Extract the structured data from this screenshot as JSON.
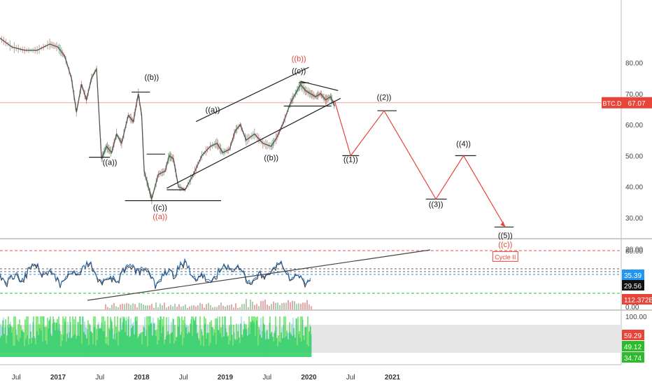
{
  "colors": {
    "price": "#555555",
    "wave": "#222222",
    "projection": "#e8443a",
    "current_line": "#f2a0a0",
    "price_badge": "#e8443a",
    "rsi": "#2f6fb5",
    "mid_blue": "#2196f3",
    "green_dash": "#22cc22",
    "osc_green": "#22dd22",
    "osc_cyan": "#2bb3c9",
    "band": "#e6e6e6",
    "axis_text": "#444444"
  },
  "chart_data": {
    "type": "line",
    "symbol": "BTC.D",
    "price_badge": "67.07",
    "current_value": 67.07,
    "x_ticks": [
      "Jul",
      "2017",
      "Jul",
      "2018",
      "Jul",
      "2019",
      "Jul",
      "2020",
      "Jul",
      "2021"
    ],
    "x_bold_ticks": [
      "2017",
      "2018",
      "2019",
      "2020",
      "2021"
    ],
    "y_ticks": [
      "80.00",
      "70.00",
      "60.00",
      "50.00",
      "40.00",
      "30.00",
      "20.00"
    ],
    "ylim": [
      12,
      88
    ],
    "price_series": [
      {
        "t": 2016.15,
        "v": 84
      },
      {
        "t": 2016.3,
        "v": 88
      },
      {
        "t": 2016.45,
        "v": 85
      },
      {
        "t": 2016.6,
        "v": 84
      },
      {
        "t": 2016.75,
        "v": 84
      },
      {
        "t": 2016.9,
        "v": 86
      },
      {
        "t": 2017.0,
        "v": 85
      },
      {
        "t": 2017.08,
        "v": 82
      },
      {
        "t": 2017.16,
        "v": 75
      },
      {
        "t": 2017.22,
        "v": 64
      },
      {
        "t": 2017.28,
        "v": 73
      },
      {
        "t": 2017.34,
        "v": 68
      },
      {
        "t": 2017.4,
        "v": 75
      },
      {
        "t": 2017.46,
        "v": 78
      },
      {
        "t": 2017.52,
        "v": 49
      },
      {
        "t": 2017.58,
        "v": 53
      },
      {
        "t": 2017.64,
        "v": 51
      },
      {
        "t": 2017.7,
        "v": 57
      },
      {
        "t": 2017.76,
        "v": 54
      },
      {
        "t": 2017.84,
        "v": 63
      },
      {
        "t": 2017.9,
        "v": 61
      },
      {
        "t": 2017.96,
        "v": 70
      },
      {
        "t": 2018.0,
        "v": 63
      },
      {
        "t": 2018.03,
        "v": 45
      },
      {
        "t": 2018.08,
        "v": 40
      },
      {
        "t": 2018.12,
        "v": 36
      },
      {
        "t": 2018.2,
        "v": 44
      },
      {
        "t": 2018.28,
        "v": 45
      },
      {
        "t": 2018.33,
        "v": 50
      },
      {
        "t": 2018.38,
        "v": 49
      },
      {
        "t": 2018.44,
        "v": 40
      },
      {
        "t": 2018.52,
        "v": 39
      },
      {
        "t": 2018.62,
        "v": 44
      },
      {
        "t": 2018.72,
        "v": 50
      },
      {
        "t": 2018.82,
        "v": 53
      },
      {
        "t": 2018.9,
        "v": 54
      },
      {
        "t": 2018.97,
        "v": 51
      },
      {
        "t": 2019.05,
        "v": 52
      },
      {
        "t": 2019.12,
        "v": 58
      },
      {
        "t": 2019.18,
        "v": 60
      },
      {
        "t": 2019.25,
        "v": 55
      },
      {
        "t": 2019.35,
        "v": 57
      },
      {
        "t": 2019.45,
        "v": 54
      },
      {
        "t": 2019.55,
        "v": 53
      },
      {
        "t": 2019.62,
        "v": 56
      },
      {
        "t": 2019.7,
        "v": 61
      },
      {
        "t": 2019.78,
        "v": 67
      },
      {
        "t": 2019.84,
        "v": 70
      },
      {
        "t": 2019.9,
        "v": 73
      },
      {
        "t": 2019.96,
        "v": 71
      },
      {
        "t": 2020.02,
        "v": 70
      },
      {
        "t": 2020.08,
        "v": 69
      },
      {
        "t": 2020.14,
        "v": 70
      },
      {
        "t": 2020.2,
        "v": 68
      },
      {
        "t": 2020.26,
        "v": 69
      },
      {
        "t": 2020.31,
        "v": 66
      }
    ],
    "projection_path": [
      {
        "t": 2020.31,
        "v": 67.5
      },
      {
        "t": 2020.5,
        "v": 50
      },
      {
        "t": 2020.9,
        "v": 64.5
      },
      {
        "t": 2021.52,
        "v": 36
      },
      {
        "t": 2021.85,
        "v": 50
      },
      {
        "t": 2022.35,
        "v": 27
      }
    ],
    "wave_labels": [
      {
        "text": "((b))",
        "t": 2018.12,
        "v": 74.5,
        "color": "black"
      },
      {
        "text": "((a))",
        "t": 2017.62,
        "v": 47,
        "color": "black"
      },
      {
        "text": "((c))",
        "t": 2018.22,
        "v": 32.5,
        "color": "black"
      },
      {
        "text": "((a))",
        "t": 2018.22,
        "v": 29.5,
        "color": "red"
      },
      {
        "text": "((a))",
        "t": 2018.85,
        "v": 64,
        "color": "black"
      },
      {
        "text": "((b))",
        "t": 2019.55,
        "v": 48.5,
        "color": "black"
      },
      {
        "text": "((c))",
        "t": 2019.88,
        "v": 76.5,
        "color": "black"
      },
      {
        "text": "((b))",
        "t": 2019.88,
        "v": 80.5,
        "color": "red"
      },
      {
        "text": "((1))",
        "t": 2020.5,
        "v": 48,
        "color": "black"
      },
      {
        "text": "((2))",
        "t": 2020.9,
        "v": 68,
        "color": "black"
      },
      {
        "text": "((3))",
        "t": 2021.52,
        "v": 33.5,
        "color": "black"
      },
      {
        "text": "((4))",
        "t": 2021.85,
        "v": 53,
        "color": "black"
      },
      {
        "text": "((5))",
        "t": 2022.35,
        "v": 23.5,
        "color": "black"
      },
      {
        "text": "((c))",
        "t": 2022.35,
        "v": 20.5,
        "color": "red"
      }
    ],
    "cycle_label": "Cycle II",
    "indicator": {
      "y_ticks": [
        "80.00",
        "0.00"
      ],
      "badges": [
        {
          "text": "35.39",
          "kind": "blue"
        },
        {
          "text": "29.56",
          "kind": "black"
        },
        {
          "text": "112.372B",
          "kind": "red"
        }
      ]
    },
    "oscillator": {
      "y_ticks": [
        "100.00"
      ],
      "badges": [
        {
          "text": "59.29",
          "kind": "red"
        },
        {
          "text": "49.12",
          "kind": "green"
        },
        {
          "text": "34.74",
          "kind": "green"
        }
      ]
    }
  }
}
